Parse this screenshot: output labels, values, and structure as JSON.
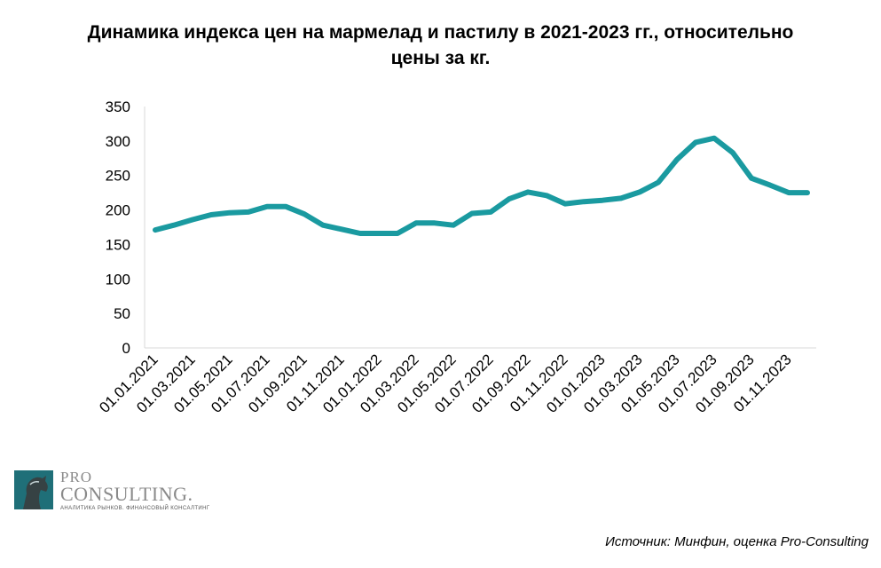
{
  "chart_data": {
    "type": "line",
    "title_lines": [
      "Динамика индекса цен на мармелад и пастилу в 2021-2023 гг., относительно",
      "цены за кг."
    ],
    "xlabel": "",
    "ylabel": "",
    "ylim": [
      0,
      350
    ],
    "yticks": [
      "0",
      "50",
      "100",
      "150",
      "200",
      "250",
      "300",
      "350"
    ],
    "x_tick_labels": [
      "01.01.2021",
      "01.03.2021",
      "01.05.2021",
      "01.07.2021",
      "01.09.2021",
      "01.11.2021",
      "01.01.2022",
      "01.03.2022",
      "01.05.2022",
      "01.07.2022",
      "01.09.2022",
      "01.11.2022",
      "01.01.2023",
      "01.03.2023",
      "01.05.2023",
      "01.07.2023",
      "01.09.2023",
      "01.11.2023"
    ],
    "grid": false,
    "legend": "none",
    "series": [
      {
        "color": "#1a9aa0",
        "values": [
          171,
          178,
          186,
          193,
          196,
          197,
          205,
          205,
          194,
          178,
          172,
          166,
          166,
          166,
          181,
          181,
          178,
          195,
          197,
          216,
          226,
          221,
          209,
          212,
          214,
          217,
          226,
          240,
          273,
          298,
          304,
          283,
          246,
          236,
          225,
          225
        ]
      }
    ]
  },
  "logo": {
    "pro": "PRO",
    "consulting": "CONSULTING.",
    "tagline": "АНАЛИТИКА РЫНКОВ. ФИНАНСОВЫЙ КОНСАЛТИНГ"
  },
  "source": "Источник: Минфин, оценка Pro-Consulting"
}
